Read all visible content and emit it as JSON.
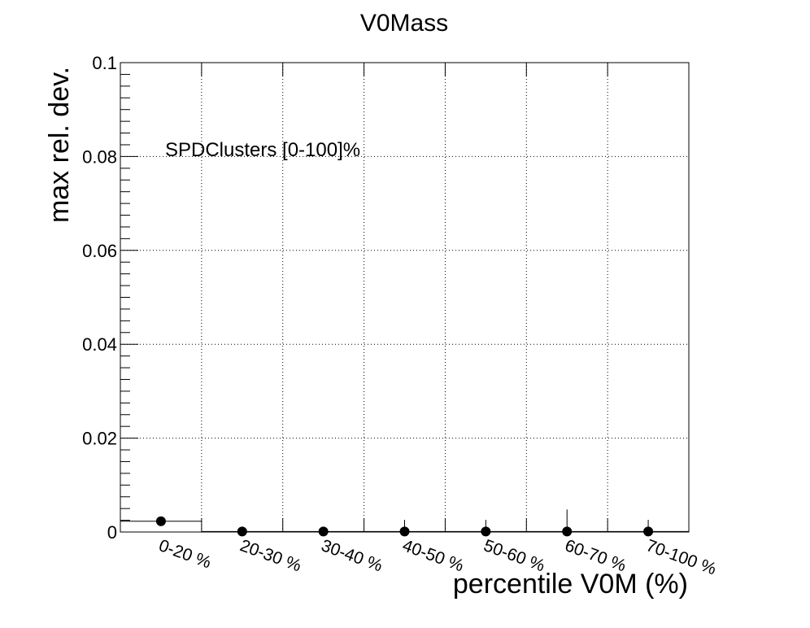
{
  "chart_data": {
    "type": "scatter",
    "title": "V0Mass",
    "xlabel": "percentile V0M (%)",
    "ylabel": "max rel. dev.",
    "ylim": [
      0,
      0.1
    ],
    "yticks": [
      "0",
      "0.02",
      "0.04",
      "0.06",
      "0.08",
      "0.1"
    ],
    "ytick_values": [
      0,
      0.02,
      0.04,
      0.06,
      0.08,
      0.1
    ],
    "categories": [
      "0-20 %",
      "20-30 %",
      "30-40 %",
      "40-50 %",
      "50-60 %",
      "60-70 %",
      "70-100 %"
    ],
    "values": [
      0.0023,
      0.0001,
      0.0001,
      0.0001,
      0.0001,
      0.0001,
      0.0001
    ],
    "errors": [
      0.0001,
      0.0001,
      0.0001,
      0.0025,
      0.0025,
      0.0047,
      0.0025
    ],
    "annotation": "SPDClusters [0-100]%",
    "grid": true,
    "marker_color": "#000000"
  }
}
